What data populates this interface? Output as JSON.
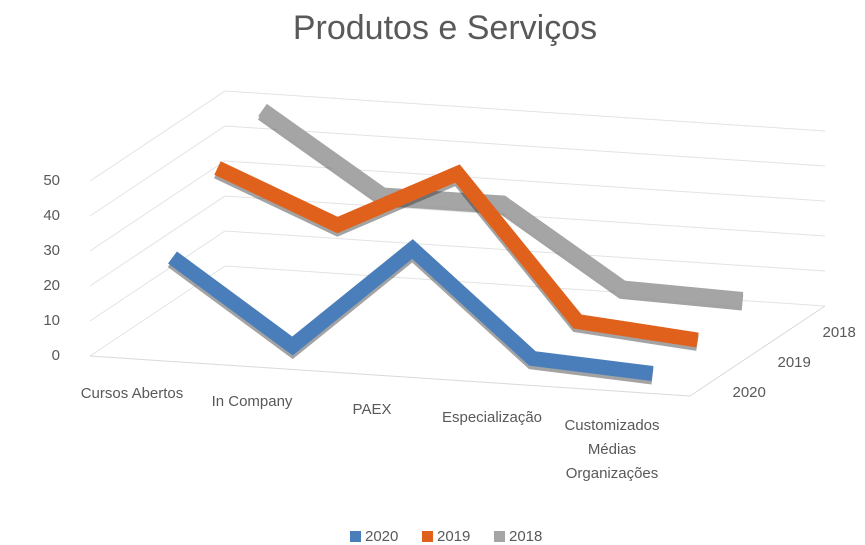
{
  "chart_data": {
    "type": "line3d",
    "title": "Produtos e Serviços",
    "categories": [
      "Cursos Abertos",
      "In Company",
      "PAEX",
      "Especialização",
      "Customizados Médias Organizações"
    ],
    "series": [
      {
        "name": "2020",
        "color": "#4a7ebb",
        "values": [
          25,
          2,
          32,
          3,
          1
        ]
      },
      {
        "name": "2019",
        "color": "#e0611c",
        "values": [
          42,
          28,
          45,
          5,
          2
        ]
      },
      {
        "name": "2018",
        "color": "#a5a5a5",
        "values": [
          50,
          28,
          28,
          6,
          5
        ]
      }
    ],
    "ylim": [
      0,
      50
    ],
    "yticks": [
      0,
      10,
      20,
      30,
      40,
      50
    ],
    "grid": true,
    "legend": "bottom"
  }
}
